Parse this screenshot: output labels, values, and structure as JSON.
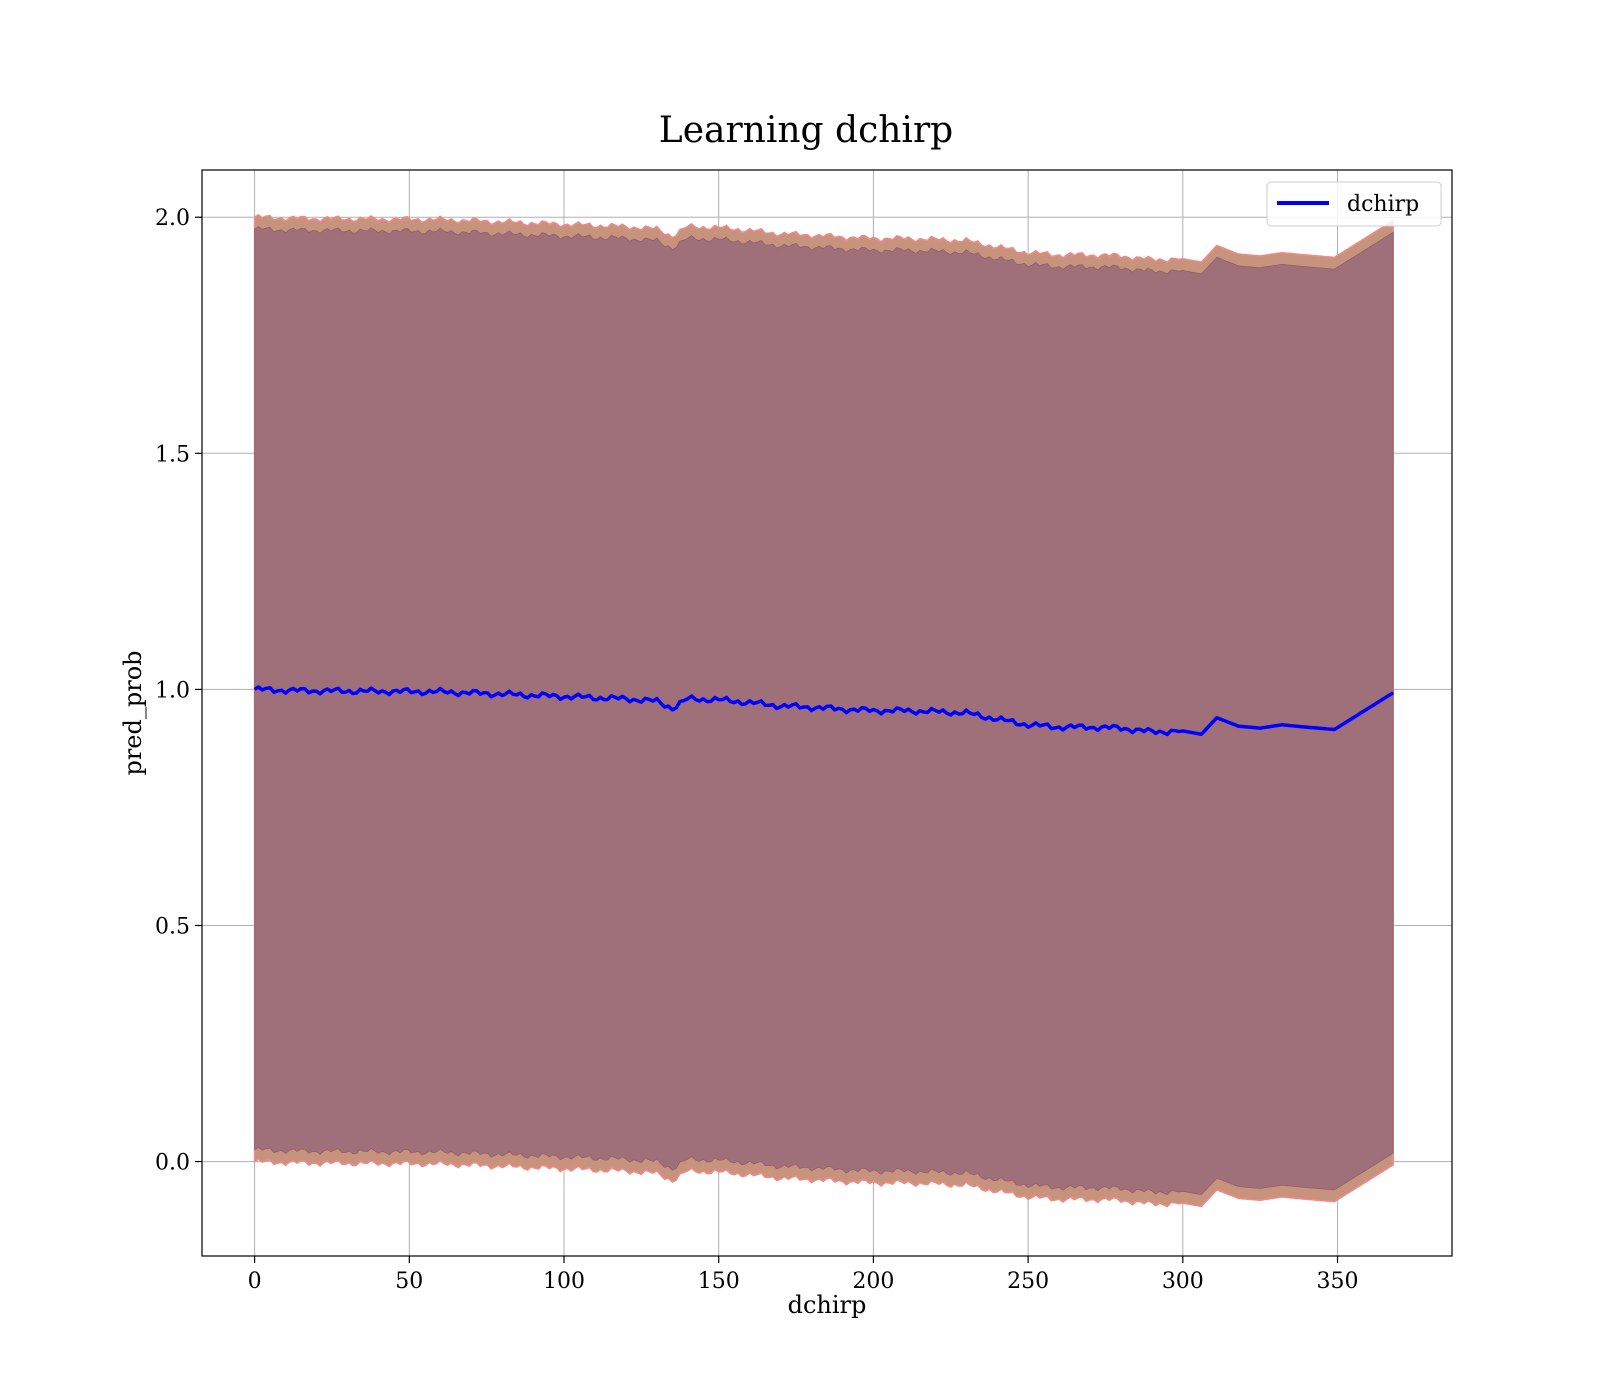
{
  "chart_data": {
    "type": "line",
    "title": "Learning dchirp",
    "xlabel": "dchirp",
    "ylabel": "pred_prob",
    "xlim": [
      -17,
      387
    ],
    "ylim": [
      -0.2,
      2.1
    ],
    "x_ticks": [
      0,
      50,
      100,
      150,
      200,
      250,
      300,
      350
    ],
    "x_tick_labels": [
      "0",
      "50",
      "100",
      "150",
      "200",
      "250",
      "300",
      "350"
    ],
    "y_ticks": [
      0.0,
      0.5,
      1.0,
      1.5,
      2.0
    ],
    "y_tick_labels": [
      "0.0",
      "0.5",
      "1.0",
      "1.5",
      "2.0"
    ],
    "grid": true,
    "legend": {
      "placement": "upper-right",
      "entries": [
        "dchirp"
      ]
    },
    "colors": {
      "line": "#0000ff",
      "outer_band": "#c8937c",
      "outer_band_edge": "#f08a8a",
      "inner_band": "#a0707a",
      "grid": "#b0b0b0"
    },
    "series": [
      {
        "name": "dchirp",
        "x": [
          0,
          10,
          20,
          40,
          60,
          80,
          100,
          120,
          130,
          135,
          140,
          150,
          160,
          170,
          180,
          190,
          200,
          210,
          220,
          230,
          240,
          250,
          260,
          270,
          280,
          290,
          300,
          306,
          311,
          318,
          325,
          332,
          340,
          349,
          368
        ],
        "y": [
          1.0,
          0.998,
          0.997,
          0.996,
          0.995,
          0.99,
          0.985,
          0.98,
          0.975,
          0.96,
          0.98,
          0.978,
          0.972,
          0.965,
          0.962,
          0.958,
          0.955,
          0.955,
          0.953,
          0.95,
          0.937,
          0.925,
          0.92,
          0.92,
          0.918,
          0.91,
          0.912,
          0.905,
          0.94,
          0.922,
          0.918,
          0.925,
          0.92,
          0.915,
          0.993
        ],
        "outer_upper": [
          2.0,
          1.998,
          1.997,
          1.996,
          1.995,
          1.99,
          1.985,
          1.98,
          1.975,
          1.96,
          1.98,
          1.978,
          1.972,
          1.965,
          1.962,
          1.958,
          1.955,
          1.955,
          1.953,
          1.95,
          1.937,
          1.925,
          1.92,
          1.92,
          1.918,
          1.91,
          1.912,
          1.905,
          1.94,
          1.922,
          1.918,
          1.925,
          1.92,
          1.915,
          1.993
        ],
        "outer_lower": [
          0.0,
          -0.002,
          -0.003,
          -0.004,
          -0.005,
          -0.01,
          -0.015,
          -0.02,
          -0.025,
          -0.04,
          -0.02,
          -0.022,
          -0.028,
          -0.035,
          -0.038,
          -0.042,
          -0.045,
          -0.045,
          -0.047,
          -0.05,
          -0.063,
          -0.075,
          -0.08,
          -0.08,
          -0.082,
          -0.09,
          -0.088,
          -0.095,
          -0.06,
          -0.078,
          -0.082,
          -0.075,
          -0.08,
          -0.085,
          -0.007
        ],
        "inner_upper": [
          1.975,
          1.973,
          1.972,
          1.971,
          1.97,
          1.965,
          1.96,
          1.955,
          1.95,
          1.935,
          1.955,
          1.953,
          1.947,
          1.94,
          1.937,
          1.933,
          1.93,
          1.93,
          1.928,
          1.925,
          1.912,
          1.9,
          1.895,
          1.895,
          1.893,
          1.885,
          1.887,
          1.88,
          1.915,
          1.897,
          1.893,
          1.9,
          1.895,
          1.89,
          1.968
        ],
        "inner_lower": [
          0.025,
          0.023,
          0.022,
          0.021,
          0.02,
          0.015,
          0.01,
          0.005,
          0.0,
          -0.015,
          0.005,
          0.003,
          -0.003,
          -0.01,
          -0.013,
          -0.017,
          -0.02,
          -0.02,
          -0.022,
          -0.025,
          -0.038,
          -0.05,
          -0.055,
          -0.055,
          -0.057,
          -0.065,
          -0.063,
          -0.07,
          -0.035,
          -0.053,
          -0.057,
          -0.05,
          -0.055,
          -0.06,
          0.018
        ]
      }
    ]
  }
}
